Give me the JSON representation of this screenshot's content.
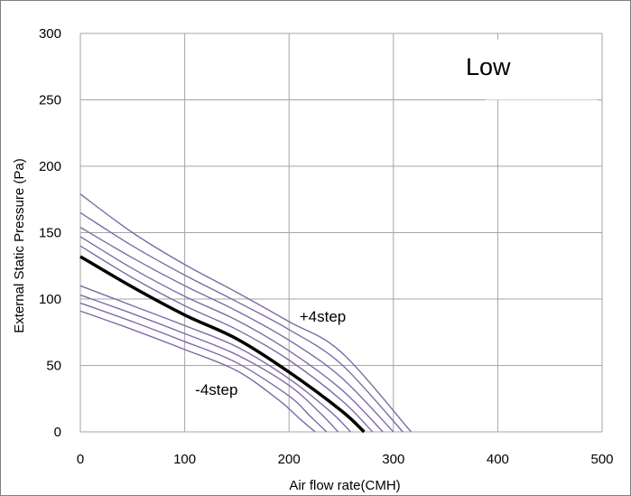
{
  "chart_data": {
    "type": "line",
    "title": "",
    "badge": "Low",
    "xlabel": "Air flow rate(CMH)",
    "ylabel": "External Static Pressure (Pa)",
    "xlim": [
      0,
      500
    ],
    "ylim": [
      0,
      300
    ],
    "xticks": [
      0,
      100,
      200,
      300,
      400,
      500
    ],
    "yticks": [
      0,
      50,
      100,
      150,
      200,
      250,
      300
    ],
    "grid": true,
    "colors": {
      "steps": "#7e69a8",
      "nominal": "#000000",
      "grid": "#a6a6a6",
      "frame": "#7f7f7f"
    },
    "annotations": [
      {
        "text": "+4step",
        "x": 210,
        "y": 83
      },
      {
        "text": "-4step",
        "x": 110,
        "y": 28
      }
    ],
    "series": [
      {
        "step": -4,
        "points": [
          [
            0,
            91
          ],
          [
            50,
            77
          ],
          [
            100,
            62
          ],
          [
            150,
            46
          ],
          [
            190,
            24
          ],
          [
            210,
            10
          ],
          [
            225,
            0
          ]
        ]
      },
      {
        "step": -3,
        "points": [
          [
            0,
            97
          ],
          [
            50,
            83
          ],
          [
            100,
            68
          ],
          [
            150,
            52
          ],
          [
            200,
            27
          ],
          [
            220,
            12
          ],
          [
            236,
            0
          ]
        ]
      },
      {
        "step": -2,
        "points": [
          [
            0,
            103
          ],
          [
            50,
            89
          ],
          [
            100,
            74
          ],
          [
            150,
            58
          ],
          [
            200,
            35
          ],
          [
            230,
            14
          ],
          [
            247,
            0
          ]
        ]
      },
      {
        "step": -1,
        "points": [
          [
            0,
            110
          ],
          [
            50,
            95
          ],
          [
            100,
            80
          ],
          [
            150,
            64
          ],
          [
            200,
            40
          ],
          [
            240,
            15
          ],
          [
            259,
            0
          ]
        ]
      },
      {
        "step": 0,
        "points": [
          [
            0,
            132
          ],
          [
            50,
            109
          ],
          [
            100,
            88
          ],
          [
            150,
            70
          ],
          [
            200,
            45
          ],
          [
            250,
            16
          ],
          [
            272,
            0
          ]
        ]
      },
      {
        "step": 1,
        "points": [
          [
            0,
            140
          ],
          [
            50,
            116
          ],
          [
            100,
            95
          ],
          [
            150,
            77
          ],
          [
            200,
            54
          ],
          [
            250,
            24
          ],
          [
            280,
            0
          ]
        ]
      },
      {
        "step": 2,
        "points": [
          [
            0,
            147
          ],
          [
            50,
            123
          ],
          [
            100,
            102
          ],
          [
            150,
            84
          ],
          [
            200,
            61
          ],
          [
            250,
            32
          ],
          [
            290,
            0
          ]
        ]
      },
      {
        "step": 3,
        "points": [
          [
            0,
            154
          ],
          [
            50,
            131
          ],
          [
            100,
            110
          ],
          [
            150,
            91
          ],
          [
            200,
            69
          ],
          [
            250,
            41
          ],
          [
            300,
            0
          ]
        ]
      },
      {
        "step": 4,
        "points": [
          [
            0,
            165
          ],
          [
            50,
            140
          ],
          [
            100,
            118
          ],
          [
            150,
            98
          ],
          [
            200,
            77
          ],
          [
            250,
            51
          ],
          [
            309,
            0
          ]
        ]
      },
      {
        "step": 5,
        "points": [
          [
            0,
            179
          ],
          [
            50,
            150
          ],
          [
            100,
            126
          ],
          [
            150,
            105
          ],
          [
            200,
            83
          ],
          [
            250,
            60
          ],
          [
            317,
            0
          ]
        ]
      }
    ]
  }
}
